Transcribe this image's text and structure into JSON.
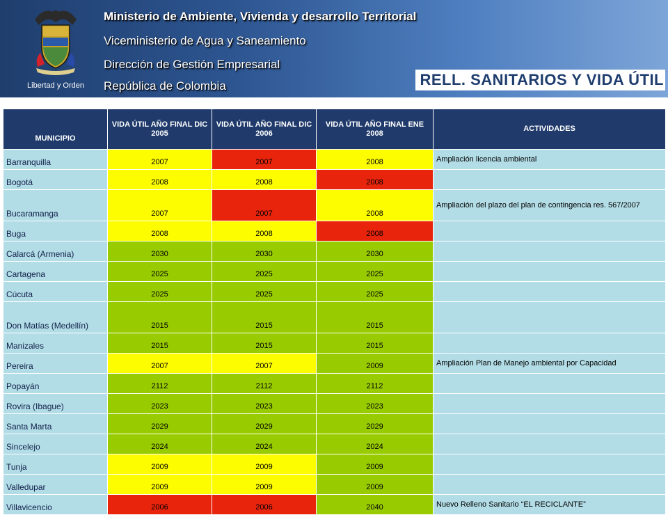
{
  "header": {
    "emblem_caption": "Libertad y Orden",
    "line1": "Ministerio de Ambiente, Vivienda y desarrollo Territorial",
    "line2": "Viceministerio de Agua y Saneamiento",
    "line3": "Dirección de Gestión Empresarial",
    "line4": "República de Colombia",
    "title": "RELL. SANITARIOS Y VIDA ÚTIL"
  },
  "colors": {
    "yellow": "#fdfd00",
    "red": "#e8240c",
    "green": "#99cc00",
    "header_bg": "#1f3a6b",
    "cell_bg": "#b3dde6"
  },
  "table": {
    "columns": [
      "MUNICIPIO",
      "VIDA ÚTIL AÑO FINAL DIC 2005",
      "VIDA ÚTIL AÑO FINAL DIC 2006",
      "VIDA ÚTIL AÑO FINAL ENE 2008",
      "ACTIVIDADES"
    ],
    "rows": [
      {
        "municipio": "Barranquilla",
        "y2005": "2007",
        "c2005": "yellow",
        "y2006": "2007",
        "c2006": "red",
        "y2008": "2008",
        "c2008": "yellow",
        "act": "Ampliación licencia ambiental"
      },
      {
        "municipio": "Bogotá",
        "y2005": "2008",
        "c2005": "yellow",
        "y2006": "2008",
        "c2006": "yellow",
        "y2008": "2008",
        "c2008": "red",
        "act": ""
      },
      {
        "municipio": "Bucaramanga",
        "y2005": "2007",
        "c2005": "yellow",
        "y2006": "2007",
        "c2006": "red",
        "y2008": "2008",
        "c2008": "yellow",
        "act": "Ampliación del plazo del plan de contingencia res. 567/2007",
        "tall": true
      },
      {
        "municipio": "Buga",
        "y2005": "2008",
        "c2005": "yellow",
        "y2006": "2008",
        "c2006": "yellow",
        "y2008": "2008",
        "c2008": "red",
        "act": ""
      },
      {
        "municipio": "Calarcá (Armenia)",
        "y2005": "2030",
        "c2005": "green",
        "y2006": "2030",
        "c2006": "green",
        "y2008": "2030",
        "c2008": "green",
        "act": ""
      },
      {
        "municipio": "Cartagena",
        "y2005": "2025",
        "c2005": "green",
        "y2006": "2025",
        "c2006": "green",
        "y2008": "2025",
        "c2008": "green",
        "act": ""
      },
      {
        "municipio": "Cúcuta",
        "y2005": "2025",
        "c2005": "green",
        "y2006": "2025",
        "c2006": "green",
        "y2008": "2025",
        "c2008": "green",
        "act": ""
      },
      {
        "municipio": "Don Matías (Medellín)",
        "y2005": "2015",
        "c2005": "green",
        "y2006": "2015",
        "c2006": "green",
        "y2008": "2015",
        "c2008": "green",
        "act": "",
        "tall": true
      },
      {
        "municipio": "Manizales",
        "y2005": "2015",
        "c2005": "green",
        "y2006": "2015",
        "c2006": "green",
        "y2008": "2015",
        "c2008": "green",
        "act": ""
      },
      {
        "municipio": "Pereira",
        "y2005": "2007",
        "c2005": "yellow",
        "y2006": "2007",
        "c2006": "yellow",
        "y2008": "2009",
        "c2008": "green",
        "act": "Ampliación Plan de Manejo ambiental por Capacidad"
      },
      {
        "municipio": "Popayán",
        "y2005": "2112",
        "c2005": "green",
        "y2006": "2112",
        "c2006": "green",
        "y2008": "2112",
        "c2008": "green",
        "act": ""
      },
      {
        "municipio": "Rovira (Ibague)",
        "y2005": "2023",
        "c2005": "green",
        "y2006": "2023",
        "c2006": "green",
        "y2008": "2023",
        "c2008": "green",
        "act": ""
      },
      {
        "municipio": "Santa Marta",
        "y2005": "2029",
        "c2005": "green",
        "y2006": "2029",
        "c2006": "green",
        "y2008": "2029",
        "c2008": "green",
        "act": ""
      },
      {
        "municipio": "Sincelejo",
        "y2005": "2024",
        "c2005": "green",
        "y2006": "2024",
        "c2006": "green",
        "y2008": "2024",
        "c2008": "green",
        "act": ""
      },
      {
        "municipio": "Tunja",
        "y2005": "2009",
        "c2005": "yellow",
        "y2006": "2009",
        "c2006": "yellow",
        "y2008": "2009",
        "c2008": "green",
        "act": ""
      },
      {
        "municipio": "Valledupar",
        "y2005": "2009",
        "c2005": "yellow",
        "y2006": "2009",
        "c2006": "yellow",
        "y2008": "2009",
        "c2008": "green",
        "act": ""
      },
      {
        "municipio": "Villavicencio",
        "y2005": "2006",
        "c2005": "red",
        "y2006": "2006",
        "c2006": "red",
        "y2008": "2040",
        "c2008": "green",
        "act": "Nuevo Relleno Sanitario “EL RECICLANTE”"
      }
    ]
  }
}
